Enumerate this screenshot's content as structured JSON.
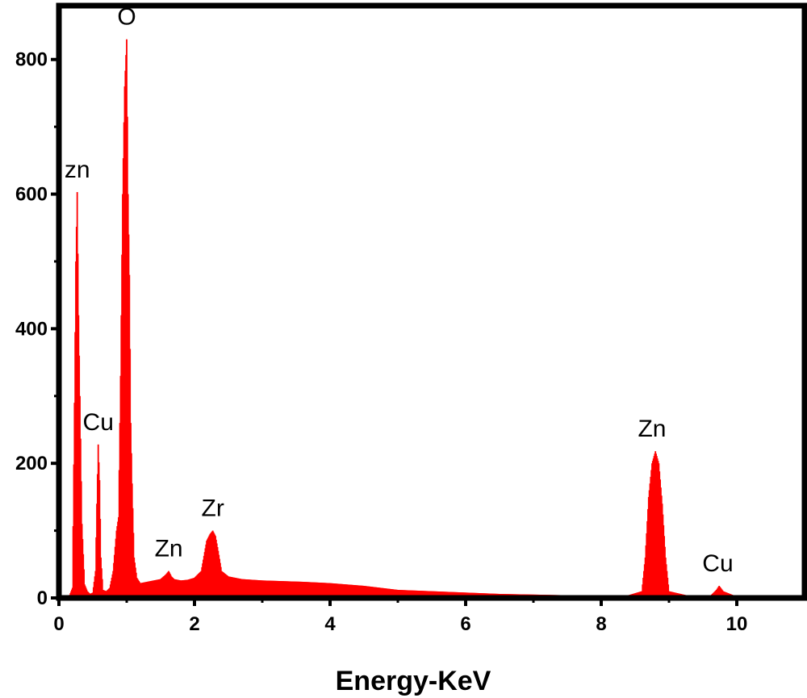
{
  "chart_data": {
    "type": "bar",
    "xlabel": "Energy-KeV",
    "ylabel": "",
    "xlim": [
      0,
      11
    ],
    "ylim": [
      0,
      880
    ],
    "x_ticks": [
      0,
      2,
      4,
      6,
      8,
      10
    ],
    "y_ticks": [
      0,
      200,
      400,
      600,
      800
    ],
    "color": "#ff0000",
    "peaks": [
      {
        "label": "zn",
        "energy": 0.27,
        "counts": 603
      },
      {
        "label": "Cu",
        "energy": 0.58,
        "counts": 228
      },
      {
        "label": "O",
        "energy": 1.0,
        "counts": 830
      },
      {
        "label": "Zn",
        "energy": 1.62,
        "counts": 40
      },
      {
        "label": "Zr",
        "energy": 2.27,
        "counts": 100
      },
      {
        "label": "Zn",
        "energy": 8.75,
        "counts": 218
      },
      {
        "label": "Cu",
        "energy": 9.72,
        "counts": 18
      }
    ],
    "series": [
      {
        "x": [
          0.15,
          0.2,
          0.23,
          0.25,
          0.27,
          0.29,
          0.31,
          0.34,
          0.38,
          0.42,
          0.46,
          0.5,
          0.54,
          0.56,
          0.58,
          0.6,
          0.62,
          0.65,
          0.7,
          0.75,
          0.8,
          0.85,
          0.88,
          0.91,
          0.94,
          0.97,
          1.0,
          1.02,
          1.04,
          1.06,
          1.08,
          1.11,
          1.15,
          1.2,
          1.3,
          1.4,
          1.5,
          1.58,
          1.62,
          1.66,
          1.7,
          1.8,
          1.9,
          2.0,
          2.1,
          2.18,
          2.23,
          2.27,
          2.31,
          2.35,
          2.4,
          2.5,
          2.7,
          3.0,
          3.3,
          3.6,
          4.0,
          4.5,
          5.0,
          5.5,
          6.0,
          6.5,
          7.0,
          7.5,
          8.0,
          8.4,
          8.6,
          8.65,
          8.7,
          8.75,
          8.8,
          8.85,
          8.9,
          8.95,
          9.0,
          9.3,
          9.6,
          9.7,
          9.74,
          9.8,
          10.0,
          10.5,
          11.0
        ],
        "y": [
          2,
          15,
          290,
          500,
          603,
          420,
          300,
          110,
          20,
          10,
          6,
          8,
          40,
          140,
          228,
          175,
          60,
          12,
          10,
          15,
          40,
          100,
          120,
          330,
          600,
          760,
          830,
          600,
          480,
          260,
          170,
          60,
          30,
          22,
          24,
          26,
          28,
          35,
          40,
          32,
          28,
          26,
          27,
          30,
          40,
          85,
          95,
          100,
          92,
          70,
          40,
          32,
          28,
          26,
          25,
          24,
          22,
          18,
          12,
          10,
          8,
          6,
          5,
          4,
          3,
          4,
          10,
          60,
          150,
          200,
          218,
          200,
          140,
          60,
          10,
          3,
          2,
          12,
          18,
          10,
          2,
          1,
          1
        ]
      }
    ]
  }
}
